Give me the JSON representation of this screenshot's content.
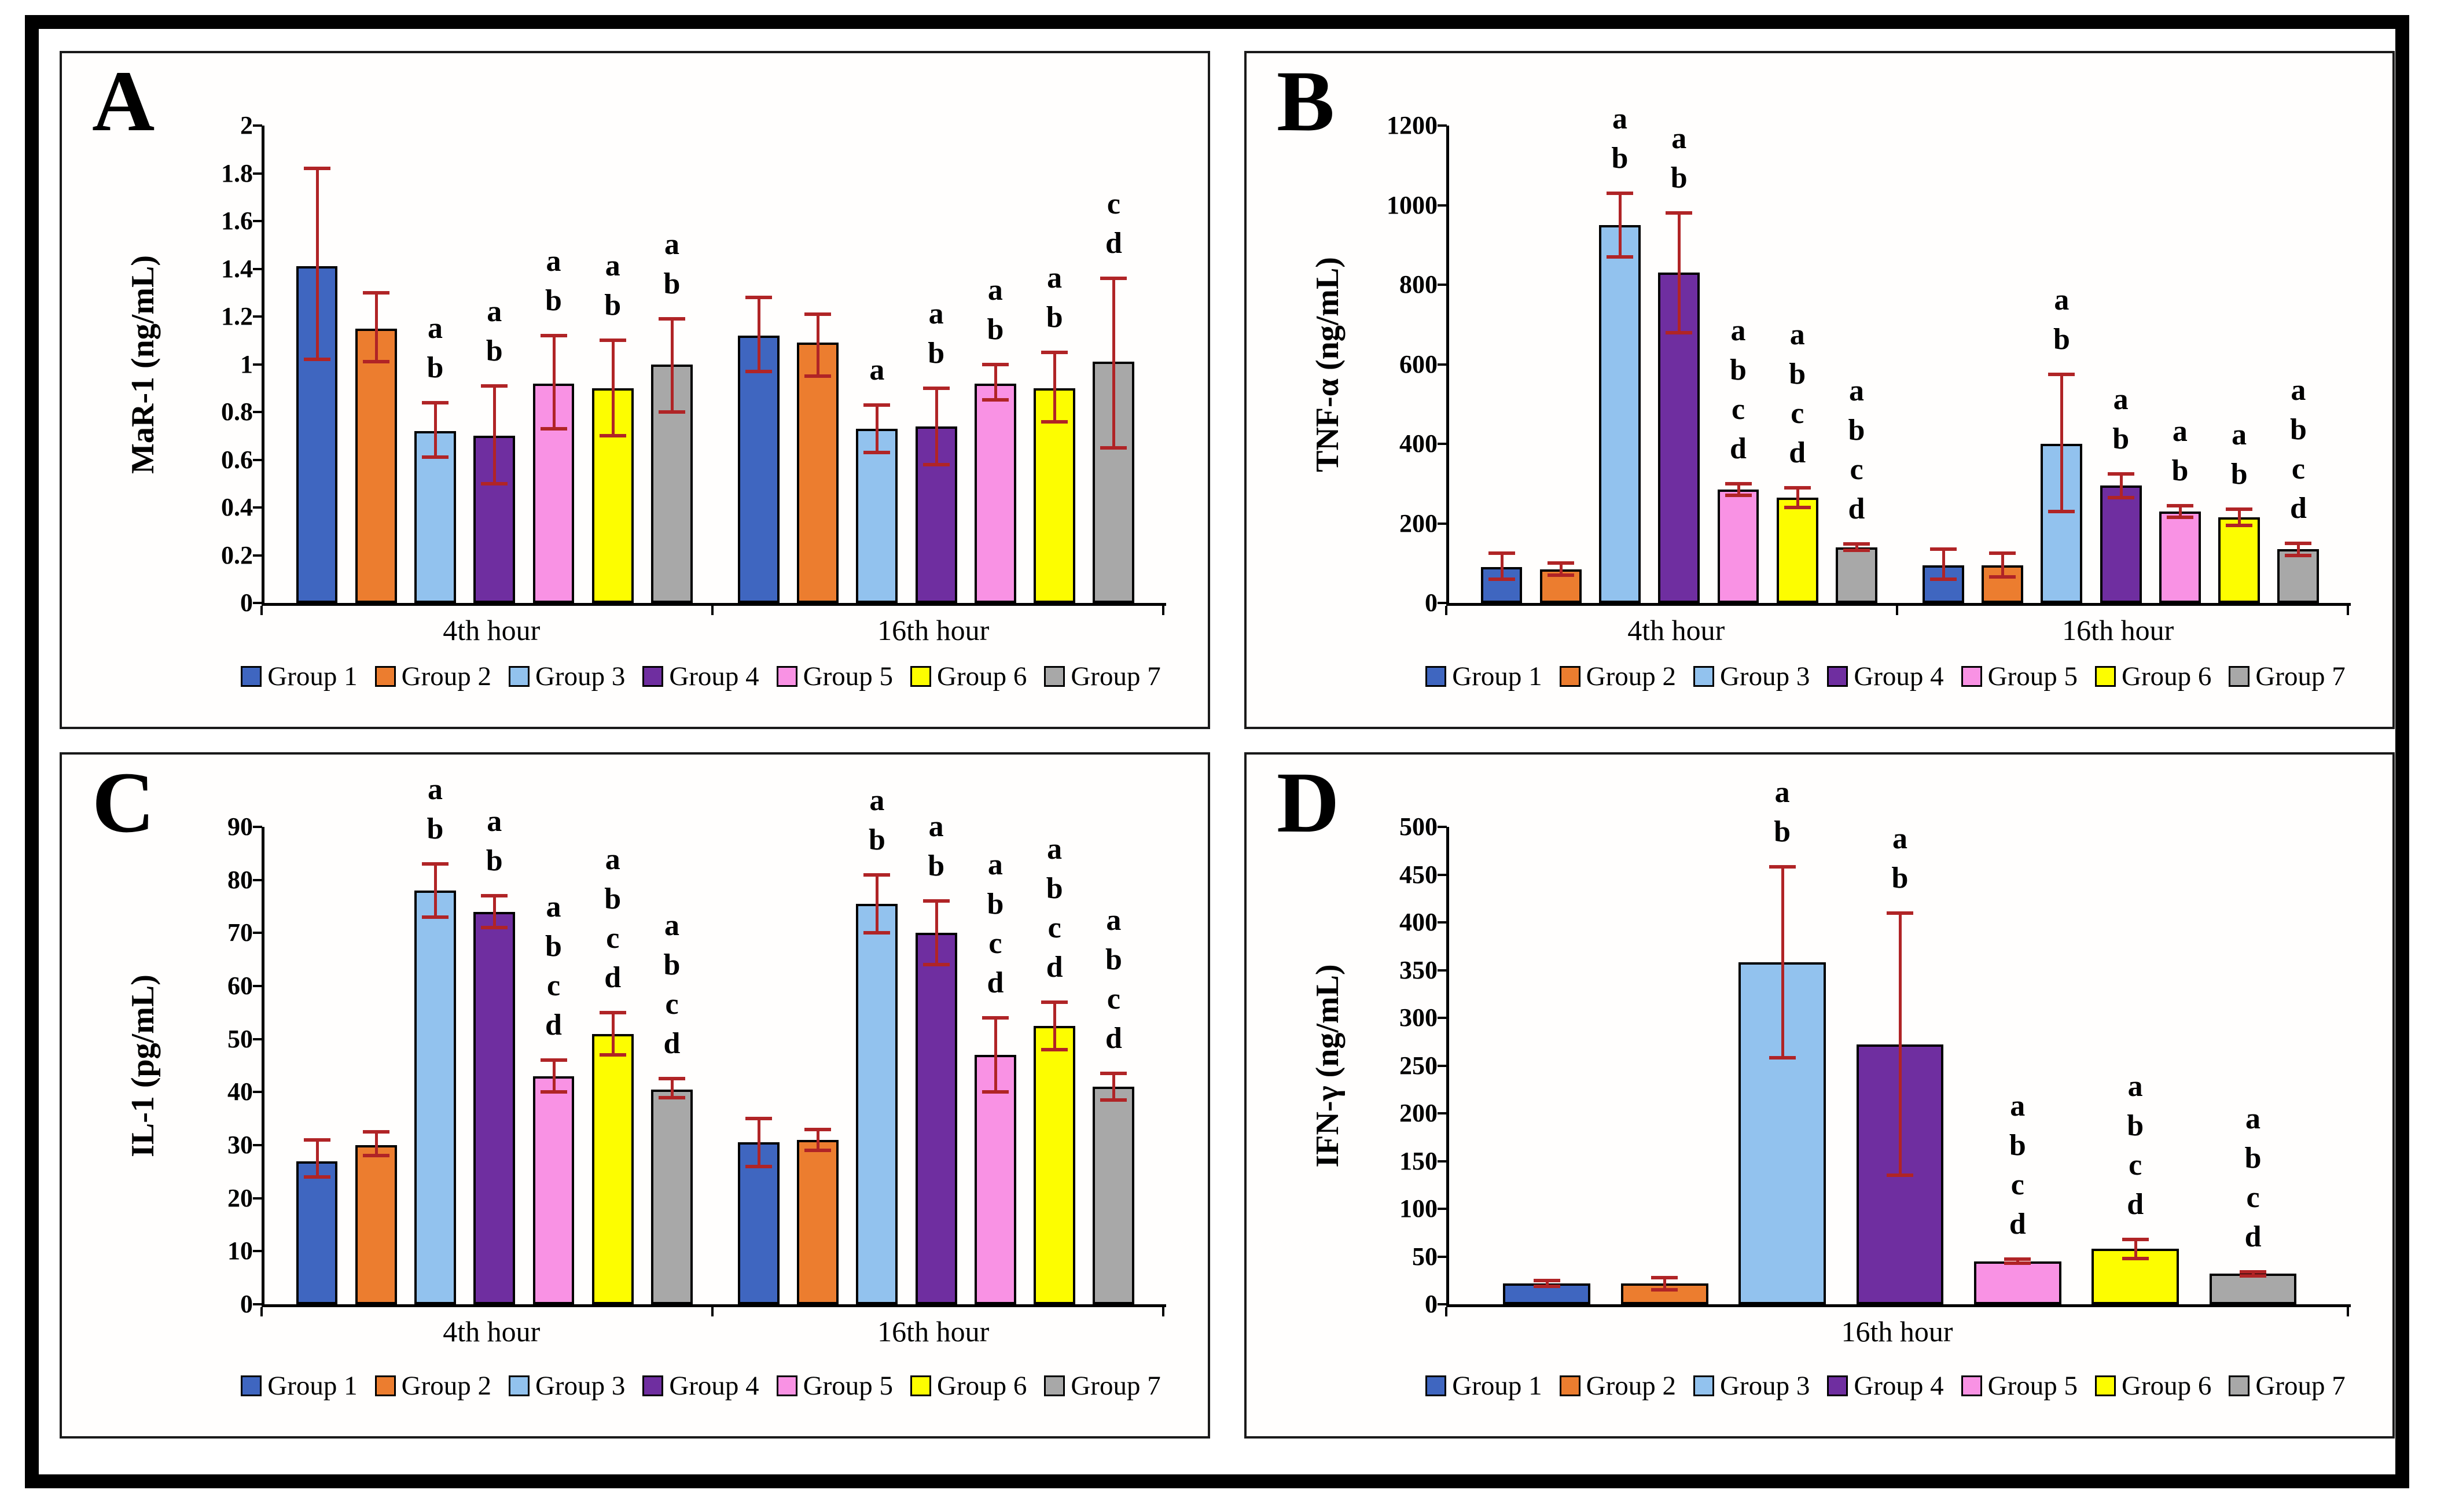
{
  "figure": {
    "background": "#ffffff",
    "frame_color": "#000000",
    "error_bar_color": "#b02426"
  },
  "chart_data": [
    {
      "id": "A",
      "panel_label": "A",
      "type": "bar",
      "title": "",
      "xlabel": "",
      "ylabel": "MaR-1 (ng/mL)",
      "ylim": [
        0,
        2
      ],
      "grid": false,
      "legend_position": "bottom",
      "ytick_labels": [
        "0",
        "0.2",
        "0.4",
        "0.6",
        "0.8",
        "1",
        "1.2",
        "1.4",
        "1.6",
        "1.8",
        "2"
      ],
      "categories": [
        "4th hour",
        "16th hour"
      ],
      "series": [
        {
          "name": "Group 1",
          "color": "#3f66c0",
          "values": [
            1.41,
            1.12
          ],
          "err_lo": [
            1.02,
            0.97
          ],
          "err_hi": [
            1.82,
            1.28
          ],
          "sig": [
            [],
            []
          ]
        },
        {
          "name": "Group 2",
          "color": "#ec7d2f",
          "values": [
            1.15,
            1.09
          ],
          "err_lo": [
            1.01,
            0.95
          ],
          "err_hi": [
            1.3,
            1.21
          ],
          "sig": [
            [],
            []
          ]
        },
        {
          "name": "Group 3",
          "color": "#92c2ee",
          "values": [
            0.72,
            0.73
          ],
          "err_lo": [
            0.61,
            0.63
          ],
          "err_hi": [
            0.84,
            0.83
          ],
          "sig": [
            [
              "a",
              "b"
            ],
            [
              "a"
            ]
          ]
        },
        {
          "name": "Group 4",
          "color": "#6f2ea0",
          "values": [
            0.7,
            0.74
          ],
          "err_lo": [
            0.5,
            0.58
          ],
          "err_hi": [
            0.91,
            0.9
          ],
          "sig": [
            [
              "a",
              "b"
            ],
            [
              "a",
              "b"
            ]
          ]
        },
        {
          "name": "Group 5",
          "color": "#f992e4",
          "values": [
            0.92,
            0.92
          ],
          "err_lo": [
            0.73,
            0.85
          ],
          "err_hi": [
            1.12,
            1.0
          ],
          "sig": [
            [
              "a",
              "b"
            ],
            [
              "a",
              "b"
            ]
          ]
        },
        {
          "name": "Group 6",
          "color": "#fdfd00",
          "values": [
            0.9,
            0.9
          ],
          "err_lo": [
            0.7,
            0.76
          ],
          "err_hi": [
            1.1,
            1.05
          ],
          "sig": [
            [
              "a",
              "b"
            ],
            [
              "a",
              "b"
            ]
          ]
        },
        {
          "name": "Group 7",
          "color": "#a8a8a8",
          "values": [
            1.0,
            1.01
          ],
          "err_lo": [
            0.8,
            0.65
          ],
          "err_hi": [
            1.19,
            1.36
          ],
          "sig": [
            [
              "a",
              "b"
            ],
            [
              "c",
              "d"
            ]
          ]
        }
      ]
    },
    {
      "id": "B",
      "panel_label": "B",
      "type": "bar",
      "title": "",
      "xlabel": "",
      "ylabel": "TNF-α (ng/mL)",
      "ylim": [
        0,
        1200
      ],
      "grid": false,
      "legend_position": "bottom",
      "ytick_labels": [
        "0",
        "200",
        "400",
        "600",
        "800",
        "1000",
        "1200"
      ],
      "categories": [
        "4th hour",
        "16th hour"
      ],
      "series": [
        {
          "name": "Group 1",
          "color": "#3f66c0",
          "values": [
            90,
            95
          ],
          "err_lo": [
            60,
            60
          ],
          "err_hi": [
            125,
            135
          ],
          "sig": [
            [],
            []
          ]
        },
        {
          "name": "Group 2",
          "color": "#ec7d2f",
          "values": [
            85,
            95
          ],
          "err_lo": [
            70,
            65
          ],
          "err_hi": [
            100,
            125
          ],
          "sig": [
            [],
            []
          ]
        },
        {
          "name": "Group 3",
          "color": "#92c2ee",
          "values": [
            950,
            400
          ],
          "err_lo": [
            870,
            230
          ],
          "err_hi": [
            1030,
            575
          ],
          "sig": [
            [
              "a",
              "b"
            ],
            [
              "a",
              "b"
            ]
          ]
        },
        {
          "name": "Group 4",
          "color": "#6f2ea0",
          "values": [
            830,
            295
          ],
          "err_lo": [
            680,
            265
          ],
          "err_hi": [
            980,
            325
          ],
          "sig": [
            [
              "a",
              "b"
            ],
            [
              "a",
              "b"
            ]
          ]
        },
        {
          "name": "Group 5",
          "color": "#f992e4",
          "values": [
            285,
            230
          ],
          "err_lo": [
            270,
            215
          ],
          "err_hi": [
            300,
            245
          ],
          "sig": [
            [
              "a",
              "b",
              "c",
              "d"
            ],
            [
              "a",
              "b"
            ]
          ]
        },
        {
          "name": "Group 6",
          "color": "#fdfd00",
          "values": [
            265,
            215
          ],
          "err_lo": [
            240,
            195
          ],
          "err_hi": [
            290,
            235
          ],
          "sig": [
            [
              "a",
              "b",
              "c",
              "d"
            ],
            [
              "a",
              "b"
            ]
          ]
        },
        {
          "name": "Group 7",
          "color": "#a8a8a8",
          "values": [
            140,
            135
          ],
          "err_lo": [
            132,
            120
          ],
          "err_hi": [
            148,
            150
          ],
          "sig": [
            [
              "a",
              "b",
              "c",
              "d"
            ],
            [
              "a",
              "b",
              "c",
              "d"
            ]
          ]
        }
      ]
    },
    {
      "id": "C",
      "panel_label": "C",
      "type": "bar",
      "title": "",
      "xlabel": "",
      "ylabel": "IL-1 (pg/mL)",
      "ylim": [
        0,
        90
      ],
      "grid": false,
      "legend_position": "bottom",
      "ytick_labels": [
        "0",
        "10",
        "20",
        "30",
        "40",
        "50",
        "60",
        "70",
        "80",
        "90"
      ],
      "categories": [
        "4th hour",
        "16th hour"
      ],
      "series": [
        {
          "name": "Group 1",
          "color": "#3f66c0",
          "values": [
            27,
            30.5
          ],
          "err_lo": [
            24,
            26
          ],
          "err_hi": [
            31,
            35
          ],
          "sig": [
            [],
            []
          ]
        },
        {
          "name": "Group 2",
          "color": "#ec7d2f",
          "values": [
            30,
            31
          ],
          "err_lo": [
            28,
            29
          ],
          "err_hi": [
            32.5,
            33
          ],
          "sig": [
            [],
            []
          ]
        },
        {
          "name": "Group 3",
          "color": "#92c2ee",
          "values": [
            78,
            75.5
          ],
          "err_lo": [
            73,
            70
          ],
          "err_hi": [
            83,
            81
          ],
          "sig": [
            [
              "a",
              "b"
            ],
            [
              "a",
              "b"
            ]
          ]
        },
        {
          "name": "Group 4",
          "color": "#6f2ea0",
          "values": [
            74,
            70
          ],
          "err_lo": [
            71,
            64
          ],
          "err_hi": [
            77,
            76
          ],
          "sig": [
            [
              "a",
              "b"
            ],
            [
              "a",
              "b"
            ]
          ]
        },
        {
          "name": "Group 5",
          "color": "#f992e4",
          "values": [
            43,
            47
          ],
          "err_lo": [
            40,
            40
          ],
          "err_hi": [
            46,
            54
          ],
          "sig": [
            [
              "a",
              "b",
              "c",
              "d"
            ],
            [
              "a",
              "b",
              "c",
              "d"
            ]
          ]
        },
        {
          "name": "Group 6",
          "color": "#fdfd00",
          "values": [
            51,
            52.5
          ],
          "err_lo": [
            47,
            48
          ],
          "err_hi": [
            55,
            57
          ],
          "sig": [
            [
              "a",
              "b",
              "c",
              "d"
            ],
            [
              "a",
              "b",
              "c",
              "d"
            ]
          ]
        },
        {
          "name": "Group 7",
          "color": "#a8a8a8",
          "values": [
            40.5,
            41
          ],
          "err_lo": [
            39,
            38.5
          ],
          "err_hi": [
            42.5,
            43.5
          ],
          "sig": [
            [
              "a",
              "b",
              "c",
              "d"
            ],
            [
              "a",
              "b",
              "c",
              "d"
            ]
          ]
        }
      ]
    },
    {
      "id": "D",
      "panel_label": "D",
      "type": "bar",
      "title": "",
      "xlabel": "",
      "ylabel": "IFN-γ (ng/mL)",
      "ylim": [
        0,
        500
      ],
      "grid": false,
      "legend_position": "bottom",
      "ytick_labels": [
        "0",
        "50",
        "100",
        "150",
        "200",
        "250",
        "300",
        "350",
        "400",
        "450",
        "500"
      ],
      "categories": [
        "16th hour"
      ],
      "series": [
        {
          "name": "Group 1",
          "color": "#3f66c0",
          "values": [
            22
          ],
          "err_lo": [
            19
          ],
          "err_hi": [
            25
          ],
          "sig": [
            []
          ]
        },
        {
          "name": "Group 2",
          "color": "#ec7d2f",
          "values": [
            22
          ],
          "err_lo": [
            15
          ],
          "err_hi": [
            28
          ],
          "sig": [
            []
          ]
        },
        {
          "name": "Group 3",
          "color": "#92c2ee",
          "values": [
            358
          ],
          "err_lo": [
            258
          ],
          "err_hi": [
            458
          ],
          "sig": [
            [
              "a",
              "b"
            ]
          ]
        },
        {
          "name": "Group 4",
          "color": "#6f2ea0",
          "values": [
            272
          ],
          "err_lo": [
            135
          ],
          "err_hi": [
            410
          ],
          "sig": [
            [
              "a",
              "b"
            ]
          ]
        },
        {
          "name": "Group 5",
          "color": "#f992e4",
          "values": [
            45
          ],
          "err_lo": [
            43
          ],
          "err_hi": [
            47
          ],
          "sig": [
            [
              "a",
              "b",
              "c",
              "d"
            ]
          ]
        },
        {
          "name": "Group 6",
          "color": "#fdfd00",
          "values": [
            58
          ],
          "err_lo": [
            48
          ],
          "err_hi": [
            68
          ],
          "sig": [
            [
              "a",
              "b",
              "c",
              "d"
            ]
          ]
        },
        {
          "name": "Group 7",
          "color": "#a8a8a8",
          "values": [
            32
          ],
          "err_lo": [
            30
          ],
          "err_hi": [
            34
          ],
          "sig": [
            [
              "a",
              "b",
              "c",
              "d"
            ]
          ]
        }
      ]
    }
  ]
}
